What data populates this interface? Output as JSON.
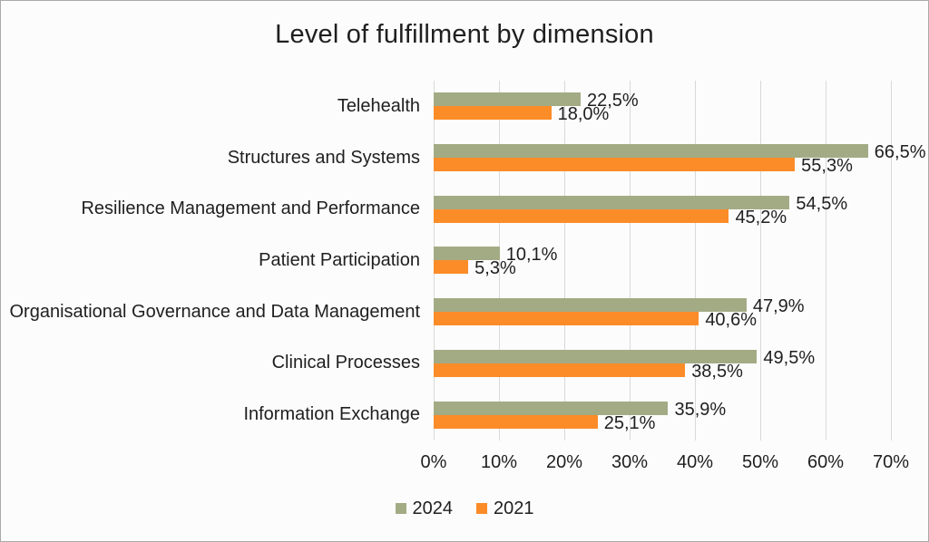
{
  "title": "Level of fulfillment by dimension",
  "colors": {
    "series_2024": "#A3AB85",
    "series_2021": "#FB8C28",
    "gridline": "#D9D9D9",
    "text": "#1F1F1F",
    "background": "#FCFCFC",
    "frame_border": "#A9A9A9"
  },
  "chart_data": {
    "type": "bar",
    "orientation": "horizontal",
    "title": "Level of fulfillment by dimension",
    "categories": [
      "Telehealth",
      "Structures and Systems",
      "Resilience Management and Performance",
      "Patient Participation",
      "Organisational Governance and Data Management",
      "Clinical Processes",
      "Information Exchange"
    ],
    "series": [
      {
        "name": "2024",
        "color": "#A3AB85",
        "values": [
          22.5,
          66.5,
          54.5,
          10.1,
          47.9,
          49.5,
          35.9
        ],
        "labels": [
          "22,5%",
          "66,5%",
          "54,5%",
          "10,1%",
          "47,9%",
          "49,5%",
          "35,9%"
        ]
      },
      {
        "name": "2021",
        "color": "#FB8C28",
        "values": [
          18.0,
          55.3,
          45.2,
          5.3,
          40.6,
          38.5,
          25.1
        ],
        "labels": [
          "18,0%",
          "55,3%",
          "45,2%",
          "5,3%",
          "40,6%",
          "38,5%",
          "25,1%"
        ]
      }
    ],
    "x_axis": {
      "min": 0,
      "max": 70,
      "ticks": [
        "0%",
        "10%",
        "20%",
        "30%",
        "40%",
        "50%",
        "60%",
        "70%"
      ]
    },
    "grid": true,
    "legend_position": "bottom",
    "legend": [
      "2024",
      "2021"
    ]
  }
}
